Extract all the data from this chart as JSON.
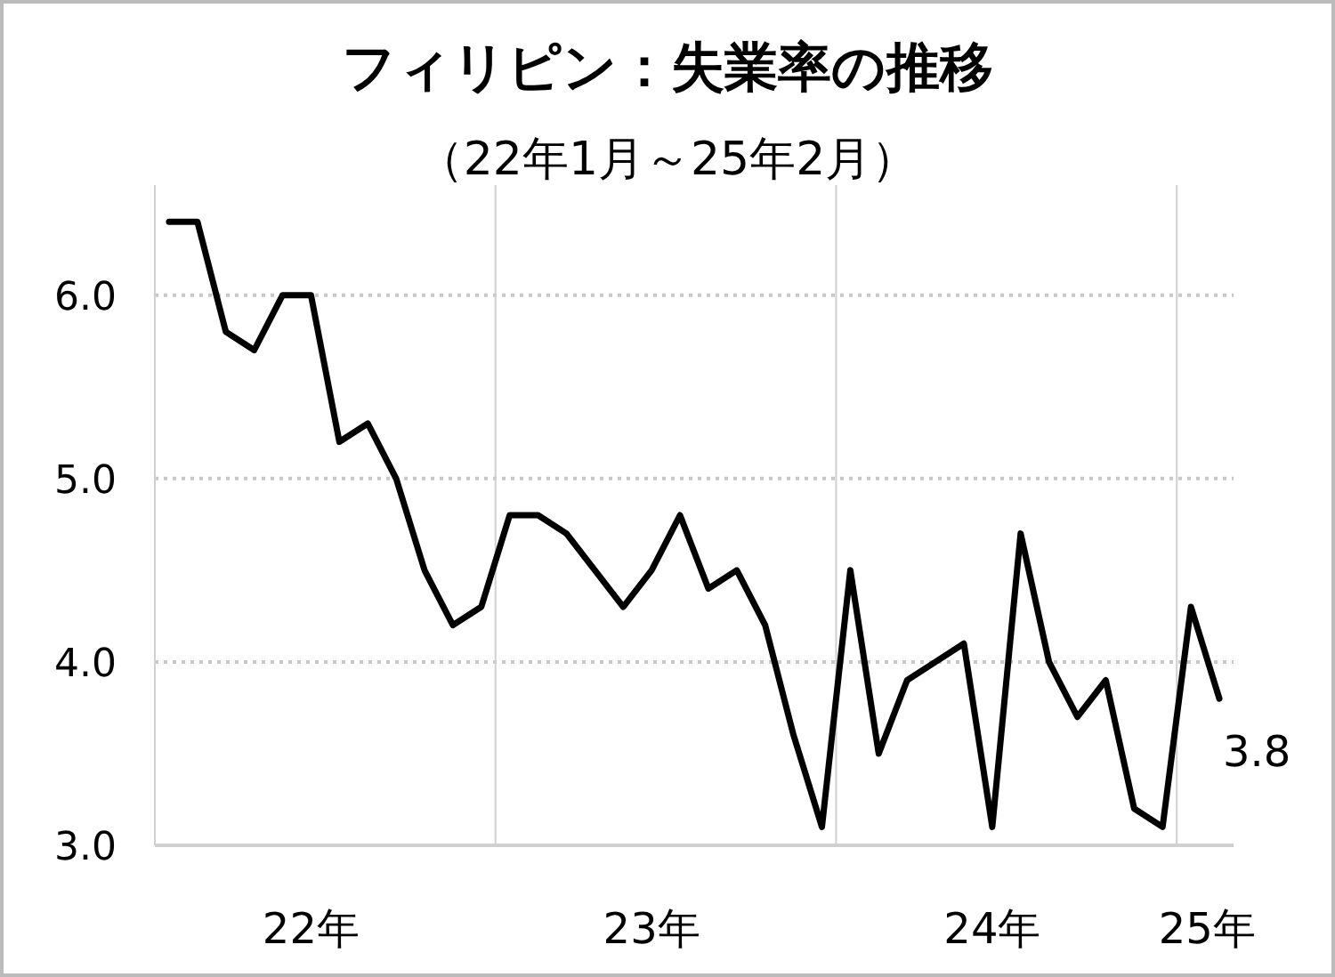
{
  "chart_data": {
    "type": "line",
    "title": "フィリピン：失業率の推移",
    "subtitle": "（22年1月～25年2月）",
    "x": [
      "2022-01",
      "2022-02",
      "2022-03",
      "2022-04",
      "2022-05",
      "2022-06",
      "2022-07",
      "2022-08",
      "2022-09",
      "2022-10",
      "2022-11",
      "2022-12",
      "2023-01",
      "2023-02",
      "2023-03",
      "2023-04",
      "2023-05",
      "2023-06",
      "2023-07",
      "2023-08",
      "2023-09",
      "2023-10",
      "2023-11",
      "2023-12",
      "2024-01",
      "2024-02",
      "2024-03",
      "2024-04",
      "2024-05",
      "2024-06",
      "2024-07",
      "2024-08",
      "2024-09",
      "2024-10",
      "2024-11",
      "2024-12",
      "2025-01",
      "2025-02"
    ],
    "series": [
      {
        "color": "#000000",
        "values": [
          6.4,
          6.4,
          5.8,
          5.7,
          6.0,
          6.0,
          5.2,
          5.3,
          5.0,
          4.5,
          4.2,
          4.3,
          4.8,
          4.8,
          4.7,
          4.5,
          4.3,
          4.5,
          4.8,
          4.4,
          4.5,
          4.2,
          3.6,
          3.1,
          4.5,
          3.5,
          3.9,
          4.0,
          4.1,
          3.1,
          4.7,
          4.0,
          3.7,
          3.9,
          3.2,
          3.1,
          4.3,
          3.8
        ]
      }
    ],
    "xlim": [
      "2021-12-16",
      "2025-02-16"
    ],
    "xticks": [
      {
        "value": "2022-06",
        "label": "22年"
      },
      {
        "value": "2023-06",
        "label": "23年"
      },
      {
        "value": "2024-06",
        "label": "24年"
      },
      {
        "value": "2025-01-18",
        "label": "25年"
      }
    ],
    "ylim": [
      3.0,
      6.6
    ],
    "yticks": [
      {
        "value": 3,
        "label": "3.0"
      },
      {
        "value": 4,
        "label": "4.0"
      },
      {
        "value": 5,
        "label": "5.0"
      },
      {
        "value": 6,
        "label": "6.0"
      }
    ],
    "grid": "y",
    "ref_lines": [
      {
        "axis": "x",
        "value": "2022-12-16",
        "color": "#d0d0d0"
      },
      {
        "axis": "x",
        "value": "2023-12-16",
        "color": "#d0d0d0"
      },
      {
        "axis": "x",
        "value": "2024-12-16",
        "color": "#d0d0d0"
      }
    ],
    "annotations": [
      {
        "text": "3.8",
        "x": "2025-02",
        "y": 3.8
      }
    ],
    "marker": "none",
    "line_style": "solid"
  }
}
